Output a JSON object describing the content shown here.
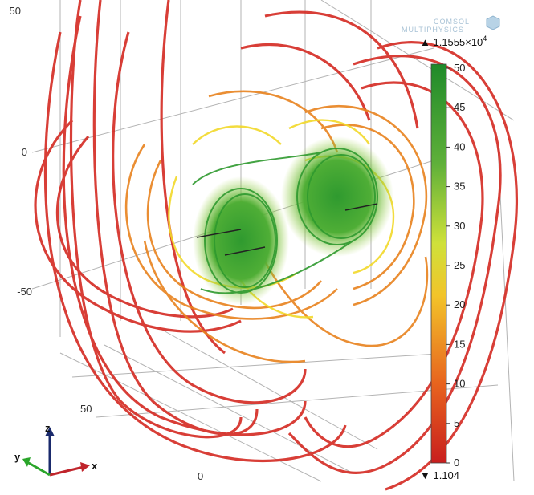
{
  "branding": {
    "line1": "COMSOL",
    "line2": "MULTIPHYSICS"
  },
  "axes": {
    "z_ticks": [
      "50",
      "0",
      "-50"
    ],
    "y_ticks": [
      "50"
    ],
    "x_ticks": [
      "0"
    ]
  },
  "colorbar": {
    "max_label": "▲ 1.1555×10",
    "max_exponent": "4",
    "min_label": "▼ 1.104",
    "ticks": [
      "50",
      "45",
      "40",
      "35",
      "30",
      "25",
      "20",
      "15",
      "10",
      "5",
      "0"
    ],
    "range": [
      0,
      50
    ],
    "colors": [
      "#c81e1e",
      "#e8641e",
      "#f2c42a",
      "#cfe13a",
      "#2f9a2f",
      "#1f8a2a"
    ]
  },
  "triad": {
    "x": "x",
    "y": "y",
    "z": "z",
    "x_color": "#c0242b",
    "y_color": "#2aa52a",
    "z_color": "#1a2a6c"
  },
  "streamline_colors": {
    "outer": "#d42a22",
    "mid": "#e8821e",
    "inner": "#f2d92a",
    "core": "#2f9a2f"
  }
}
